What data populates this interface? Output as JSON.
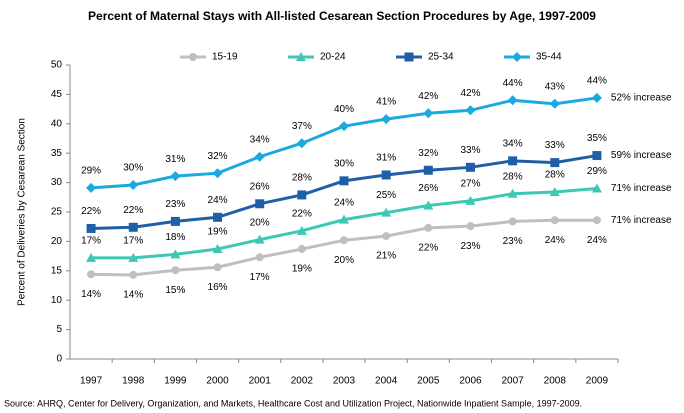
{
  "chart_data": {
    "type": "line",
    "title": "Percent of Maternal Stays with All-listed Cesarean Section Procedures by Age, 1997-2009",
    "y_label": "Percent of Deliveries by Cesarean Section",
    "source": "Source: AHRQ, Center for Delivery, Organization, and Markets, Healthcare Cost and Utilization Project, Nationwide Inpatient Sample, 1997-2009.",
    "categories": [
      "1997",
      "1998",
      "1999",
      "2000",
      "2001",
      "2002",
      "2003",
      "2004",
      "2005",
      "2006",
      "2007",
      "2008",
      "2009"
    ],
    "ylim": [
      0,
      50
    ],
    "yticks": [
      0,
      5,
      10,
      15,
      20,
      25,
      30,
      35,
      40,
      45,
      50
    ],
    "grid": false,
    "legend": "top",
    "series": [
      {
        "name": "15-19",
        "color": "#bfbfbf",
        "marker": "circle",
        "label_position": "below",
        "end_label": "71% increase",
        "values": [
          14.4,
          14.3,
          15.1,
          15.6,
          17.3,
          18.7,
          20.2,
          20.9,
          22.3,
          22.6,
          23.4,
          23.6,
          23.6
        ],
        "value_labels": [
          "14%",
          "14%",
          "15%",
          "16%",
          "17%",
          "19%",
          "20%",
          "21%",
          "22%",
          "23%",
          "23%",
          "24%",
          "24%"
        ]
      },
      {
        "name": "20-24",
        "color": "#3cc8b4",
        "marker": "triangle",
        "label_position": "above",
        "end_label": "71% increase",
        "values": [
          17.2,
          17.2,
          17.8,
          18.7,
          20.3,
          21.8,
          23.7,
          24.9,
          26.1,
          26.9,
          28.1,
          28.4,
          29.0
        ],
        "value_labels": [
          "17%",
          "17%",
          "18%",
          "19%",
          "20%",
          "22%",
          "24%",
          "25%",
          "26%",
          "27%",
          "28%",
          "28%",
          "29%"
        ]
      },
      {
        "name": "25-34",
        "color": "#1f5fa8",
        "marker": "square",
        "label_position": "above",
        "end_label": "59% increase",
        "values": [
          22.2,
          22.4,
          23.4,
          24.1,
          26.4,
          27.9,
          30.3,
          31.3,
          32.1,
          32.6,
          33.7,
          33.4,
          34.6
        ],
        "value_labels": [
          "22%",
          "22%",
          "23%",
          "24%",
          "26%",
          "28%",
          "30%",
          "31%",
          "32%",
          "33%",
          "34%",
          "33%",
          "35%"
        ]
      },
      {
        "name": "35-44",
        "color": "#1aa9e0",
        "marker": "diamond",
        "label_position": "above",
        "end_label": "52% increase",
        "values": [
          29.1,
          29.6,
          31.1,
          31.6,
          34.4,
          36.7,
          39.6,
          40.8,
          41.8,
          42.3,
          44.0,
          43.4,
          44.4
        ],
        "value_labels": [
          "29%",
          "30%",
          "31%",
          "32%",
          "34%",
          "37%",
          "40%",
          "41%",
          "42%",
          "42%",
          "44%",
          "43%",
          "44%"
        ]
      }
    ]
  }
}
